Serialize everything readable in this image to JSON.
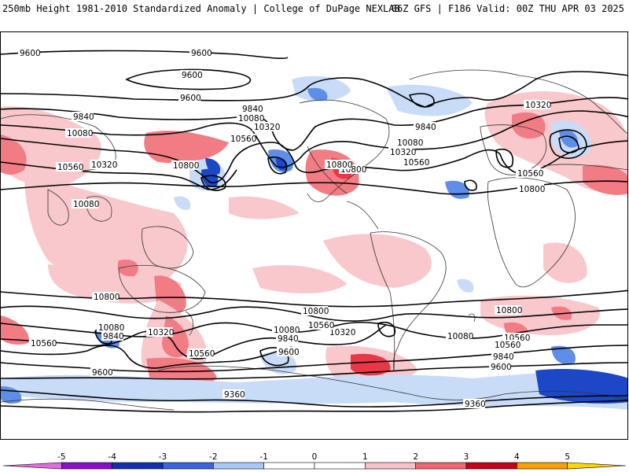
{
  "header": {
    "left_title": "250mb Height 1981-2010 Standardized Anomaly | College of DuPage NEXLAB",
    "right_title": "06Z GFS | F186 Valid: 00Z THU APR 03 2025"
  },
  "contour_labels": [
    "9600",
    "9600",
    "9600",
    "9600",
    "9840",
    "9840",
    "9840",
    "9840",
    "10080",
    "10080",
    "10080",
    "10080",
    "10080",
    "10080",
    "10320",
    "10320",
    "10320",
    "10320",
    "10320",
    "10320",
    "10560",
    "10560",
    "10560",
    "10560",
    "10560",
    "10560",
    "10560",
    "10560",
    "10560",
    "10800",
    "10800",
    "10800",
    "10800",
    "10800",
    "10800",
    "10800",
    "9360",
    "9360",
    "9600",
    "9600",
    "9600",
    "9840",
    "9840",
    "10080"
  ],
  "colorbar": {
    "ticks": [
      "-5",
      "-4",
      "-3",
      "-2",
      "-1",
      "0",
      "1",
      "2",
      "3",
      "4",
      "5"
    ],
    "colors": [
      "#e06ce0",
      "#8a10c8",
      "#1030b0",
      "#3a64e0",
      "#a8c8f8",
      "#ffffff",
      "#ffffff",
      "#f8c0c8",
      "#f06670",
      "#c80018",
      "#f8a000",
      "#f8d800"
    ]
  },
  "anomaly_colors": {
    "light_pos": "#f8c8cc",
    "mid_pos": "#f27c84",
    "strong_pos": "#e83848",
    "light_neg": "#c8dcf8",
    "mid_neg": "#5f8ee8",
    "strong_neg": "#1c48c8"
  }
}
